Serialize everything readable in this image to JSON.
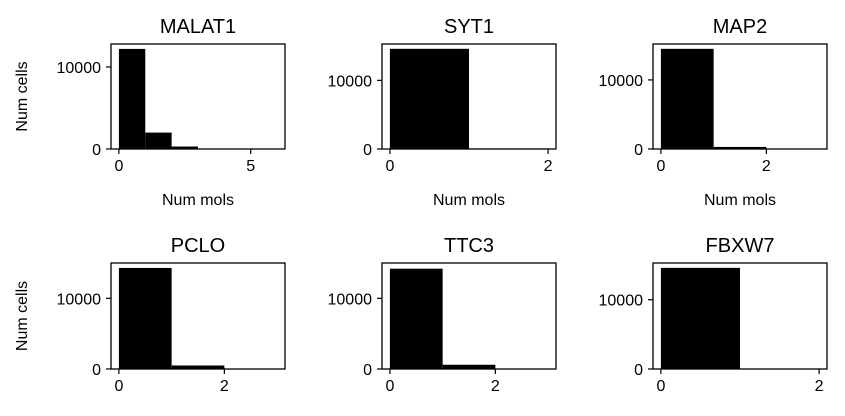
{
  "chart_data": [
    {
      "type": "bar",
      "title": "MALAT1",
      "xlabel": "Num mols",
      "ylabel": "Num cells",
      "bins": [
        [
          0,
          1
        ],
        [
          1,
          2
        ],
        [
          2,
          3
        ],
        [
          3,
          4
        ],
        [
          4,
          5
        ],
        [
          5,
          6
        ]
      ],
      "values": [
        12200,
        2000,
        300,
        40,
        10,
        3
      ],
      "xlim": [
        -0.3,
        6.3
      ],
      "ylim": [
        0,
        12800
      ],
      "xticks": [
        0,
        5
      ],
      "yticks": [
        0,
        10000
      ],
      "color": "#000000"
    },
    {
      "type": "bar",
      "title": "SYT1",
      "xlabel": "Num mols",
      "ylabel": "",
      "bins": [
        [
          0,
          1
        ],
        [
          1,
          2
        ]
      ],
      "values": [
        14600,
        80
      ],
      "xlim": [
        -0.1,
        2.1
      ],
      "ylim": [
        0,
        15300
      ],
      "xticks": [
        0,
        2
      ],
      "yticks": [
        0,
        10000
      ],
      "color": "#000000"
    },
    {
      "type": "bar",
      "title": "MAP2",
      "xlabel": "Num mols",
      "ylabel": "",
      "bins": [
        [
          0,
          1
        ],
        [
          1,
          2
        ],
        [
          2,
          3
        ]
      ],
      "values": [
        14500,
        300,
        20
      ],
      "xlim": [
        -0.15,
        3.15
      ],
      "ylim": [
        0,
        15200
      ],
      "xticks": [
        0,
        2
      ],
      "yticks": [
        0,
        10000
      ],
      "color": "#000000"
    },
    {
      "type": "bar",
      "title": "PCLO",
      "xlabel": "",
      "ylabel": "Num cells",
      "bins": [
        [
          0,
          1
        ],
        [
          1,
          2
        ],
        [
          2,
          3
        ]
      ],
      "values": [
        14300,
        500,
        50
      ],
      "xlim": [
        -0.15,
        3.15
      ],
      "ylim": [
        0,
        15000
      ],
      "xticks": [
        0,
        2
      ],
      "yticks": [
        0,
        10000
      ],
      "color": "#000000"
    },
    {
      "type": "bar",
      "title": "TTC3",
      "xlabel": "",
      "ylabel": "",
      "bins": [
        [
          0,
          1
        ],
        [
          1,
          2
        ],
        [
          2,
          3
        ]
      ],
      "values": [
        14200,
        600,
        40
      ],
      "xlim": [
        -0.15,
        3.15
      ],
      "ylim": [
        0,
        15000
      ],
      "xticks": [
        0,
        2
      ],
      "yticks": [
        0,
        10000
      ],
      "color": "#000000"
    },
    {
      "type": "bar",
      "title": "FBXW7",
      "xlabel": "",
      "ylabel": "",
      "bins": [
        [
          0,
          1
        ],
        [
          1,
          2
        ]
      ],
      "values": [
        14600,
        40
      ],
      "xlim": [
        -0.1,
        2.1
      ],
      "ylim": [
        0,
        15300
      ],
      "xticks": [
        0,
        2
      ],
      "yticks": [
        0,
        10000
      ],
      "color": "#000000"
    }
  ]
}
